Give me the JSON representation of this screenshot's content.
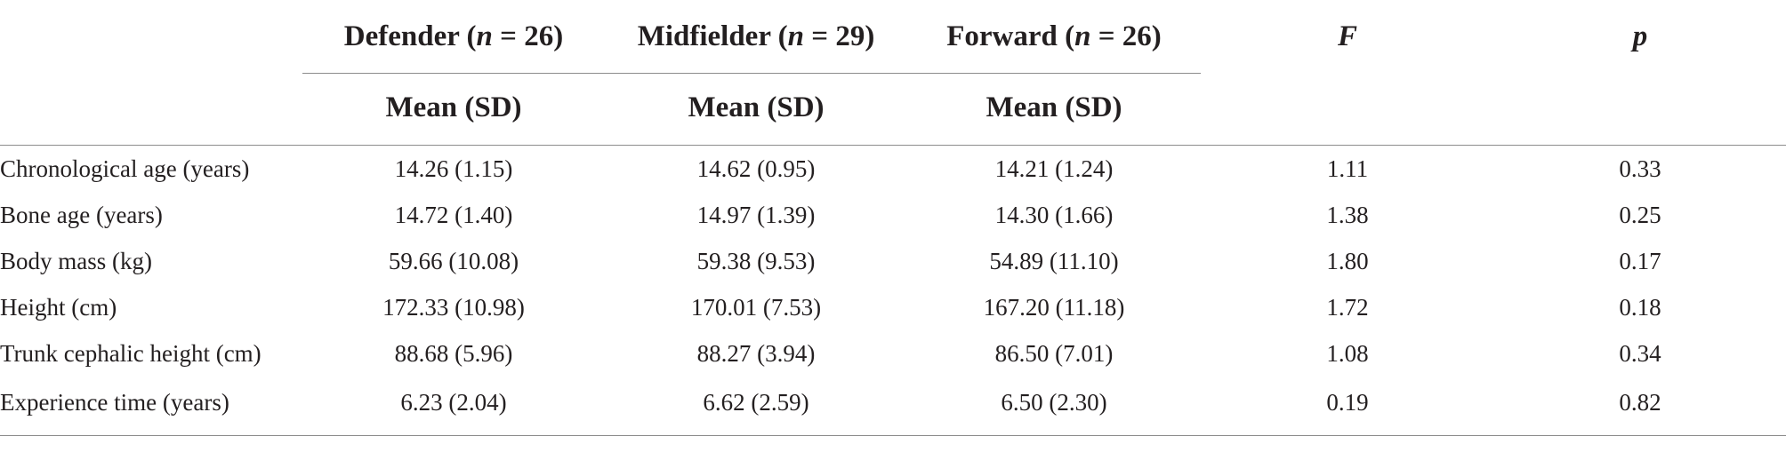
{
  "table": {
    "groups": [
      {
        "name": "Defender",
        "n_label": "n",
        "n_value": "26"
      },
      {
        "name": "Midfielder",
        "n_label": "n",
        "n_value": "29"
      },
      {
        "name": "Forward",
        "n_label": "n",
        "n_value": "26"
      }
    ],
    "stat_headers": {
      "f": "F",
      "p": "p"
    },
    "subheader": "Mean (SD)",
    "rows": [
      {
        "label": "Chronological age (years)",
        "defender": "14.26 (1.15)",
        "midfielder": "14.62 (0.95)",
        "forward": "14.21 (1.24)",
        "f": "1.11",
        "p": "0.33"
      },
      {
        "label": "Bone age (years)",
        "defender": "14.72 (1.40)",
        "midfielder": "14.97 (1.39)",
        "forward": "14.30 (1.66)",
        "f": "1.38",
        "p": "0.25"
      },
      {
        "label": "Body mass (kg)",
        "defender": "59.66 (10.08)",
        "midfielder": "59.38 (9.53)",
        "forward": "54.89 (11.10)",
        "f": "1.80",
        "p": "0.17"
      },
      {
        "label": "Height (cm)",
        "defender": "172.33 (10.98)",
        "midfielder": "170.01 (7.53)",
        "forward": "167.20 (11.18)",
        "f": "1.72",
        "p": "0.18"
      },
      {
        "label": "Trunk cephalic height (cm)",
        "defender": "88.68 (5.96)",
        "midfielder": "88.27 (3.94)",
        "forward": "86.50 (7.01)",
        "f": "1.08",
        "p": "0.34"
      },
      {
        "label": "Experience time (years)",
        "defender": "6.23 (2.04)",
        "midfielder": "6.62 (2.59)",
        "forward": "6.50 (2.30)",
        "f": "0.19",
        "p": "0.82"
      }
    ]
  }
}
